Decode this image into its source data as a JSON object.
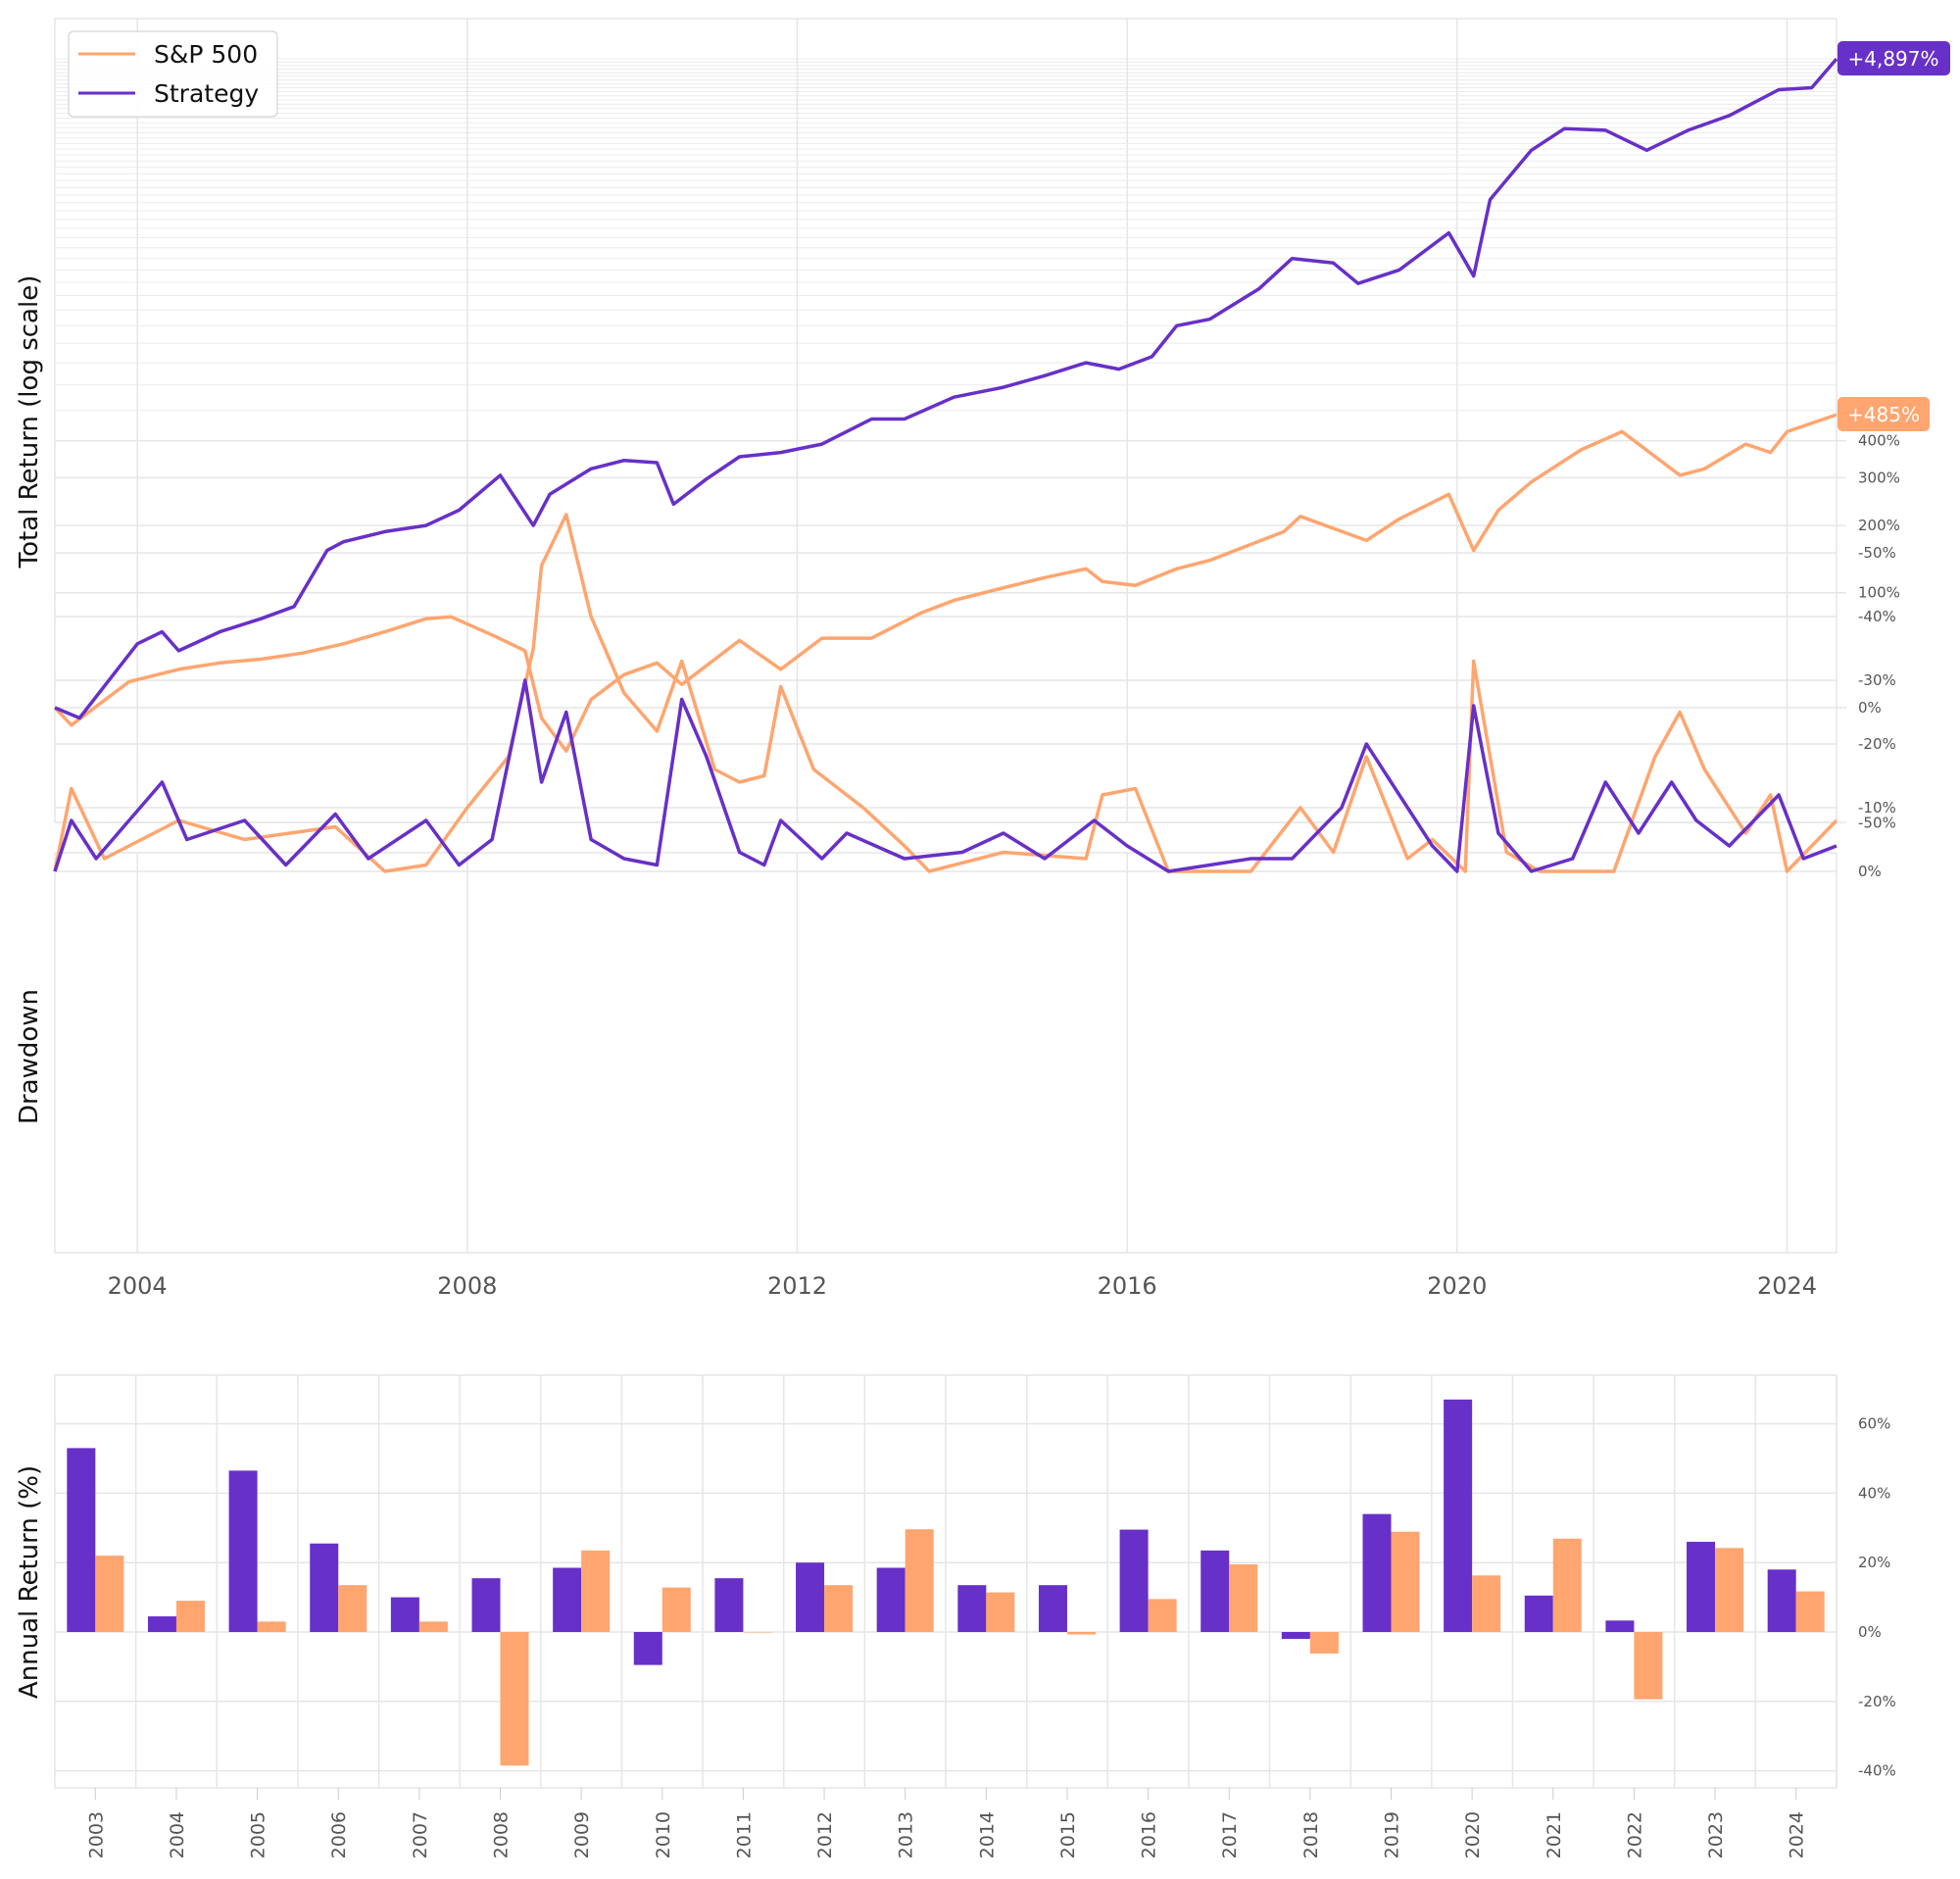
{
  "colors": {
    "strategy": "#6730c8",
    "sp500": "#ffa56f",
    "grid": "#e6e6e6"
  },
  "chart_data": [
    {
      "type": "line",
      "ylabel": "Total Return (log scale)",
      "yscale": "log(1+r)",
      "ylim": [
        -50,
        5000
      ],
      "yticks": [
        "-50%",
        "0%",
        "100%",
        "200%",
        "300%",
        "400%"
      ],
      "ytick_values": [
        -50,
        0,
        100,
        200,
        300,
        400
      ],
      "xlim": [
        2003.0,
        2024.6
      ],
      "legend": {
        "position": "top-left",
        "entries": [
          "S&P 500",
          "Strategy"
        ]
      },
      "end_labels": {
        "strategy": "+4,897%",
        "sp500": "+485%"
      },
      "series": [
        {
          "name": "Strategy",
          "x": [
            2003.0,
            2003.3,
            2004.0,
            2004.3,
            2004.5,
            2005.0,
            2005.5,
            2005.9,
            2006.3,
            2006.5,
            2007.0,
            2007.5,
            2007.9,
            2008.4,
            2008.8,
            2009.0,
            2009.5,
            2009.9,
            2010.3,
            2010.5,
            2010.9,
            2011.3,
            2011.8,
            2012.3,
            2012.9,
            2013.3,
            2013.9,
            2014.5,
            2015.0,
            2015.5,
            2015.9,
            2016.3,
            2016.6,
            2017.0,
            2017.6,
            2018.0,
            2018.5,
            2018.8,
            2019.3,
            2019.9,
            2020.2,
            2020.4,
            2020.9,
            2021.3,
            2021.8,
            2022.3,
            2022.8,
            2023.3,
            2023.9,
            2024.3,
            2024.6
          ],
          "y": [
            0,
            -6,
            47,
            58,
            41,
            58,
            71,
            84,
            158,
            172,
            189,
            200,
            229,
            306,
            200,
            262,
            322,
            344,
            338,
            241,
            297,
            354,
            366,
            390,
            470,
            470,
            550,
            590,
            640,
            700,
            670,
            730,
            900,
            940,
            1150,
            1400,
            1360,
            1190,
            1300,
            1650,
            1250,
            2040,
            2780,
            3180,
            3150,
            2780,
            3150,
            3450,
            4050,
            4100,
            4897
          ]
        },
        {
          "name": "S&P 500",
          "x": [
            2003.0,
            2003.2,
            2003.9,
            2004.5,
            2005.0,
            2005.5,
            2006.0,
            2006.5,
            2007.0,
            2007.5,
            2007.8,
            2008.3,
            2008.7,
            2008.9,
            2009.2,
            2009.5,
            2009.9,
            2010.3,
            2010.6,
            2011.3,
            2011.8,
            2012.3,
            2012.9,
            2013.5,
            2013.9,
            2014.5,
            2015.0,
            2015.5,
            2015.7,
            2016.1,
            2016.6,
            2017.0,
            2017.9,
            2018.1,
            2018.9,
            2019.3,
            2019.9,
            2020.2,
            2020.5,
            2020.9,
            2021.5,
            2022.0,
            2022.7,
            2023.0,
            2023.5,
            2023.8,
            2024.0,
            2024.6
          ],
          "y": [
            0,
            -10,
            17,
            26,
            31,
            34,
            39,
            47,
            58,
            71,
            73,
            55,
            41,
            -6,
            -23,
            5,
            22,
            31,
            15,
            50,
            26,
            52,
            52,
            77,
            91,
            106,
            119,
            131,
            114,
            109,
            131,
            143,
            189,
            217,
            174,
            212,
            262,
            158,
            229,
            290,
            373,
            428,
            306,
            322,
            390,
            366,
            428,
            485
          ]
        }
      ]
    },
    {
      "type": "line",
      "ylabel": "Drawdown",
      "ylim": [
        -60,
        0
      ],
      "yticks": [
        "0%",
        "-10%",
        "-20%",
        "-30%",
        "-40%",
        "-50%"
      ],
      "ytick_values": [
        0,
        -10,
        -20,
        -30,
        -40,
        -50
      ],
      "xticks": [
        "2004",
        "2008",
        "2012",
        "2016",
        "2020",
        "2024"
      ],
      "xtick_values": [
        2004,
        2008,
        2012,
        2016,
        2020,
        2024
      ],
      "series": [
        {
          "name": "Strategy",
          "x": [
            2003.0,
            2003.2,
            2003.5,
            2004.3,
            2004.6,
            2005.3,
            2005.8,
            2006.4,
            2006.8,
            2007.5,
            2007.9,
            2008.3,
            2008.7,
            2008.9,
            2009.2,
            2009.5,
            2009.9,
            2010.3,
            2010.6,
            2010.9,
            2011.3,
            2011.6,
            2011.8,
            2012.3,
            2012.6,
            2013.3,
            2014.0,
            2014.5,
            2015.0,
            2015.6,
            2016.0,
            2016.5,
            2017.5,
            2018.0,
            2018.6,
            2018.9,
            2019.3,
            2019.7,
            2020.0,
            2020.2,
            2020.5,
            2020.9,
            2021.4,
            2021.8,
            2022.2,
            2022.6,
            2022.9,
            2023.3,
            2023.9,
            2024.2,
            2024.6
          ],
          "y": [
            0,
            -8,
            -2,
            -14,
            -5,
            -8,
            -1,
            -9,
            -2,
            -8,
            -1,
            -5,
            -30,
            -14,
            -25,
            -5,
            -2,
            -1,
            -27,
            -18,
            -3,
            -1,
            -8,
            -2,
            -6,
            -2,
            -3,
            -6,
            -2,
            -8,
            -4,
            0,
            -2,
            -2,
            -10,
            -20,
            -12,
            -4,
            0,
            -26,
            -6,
            0,
            -2,
            -14,
            -6,
            -14,
            -8,
            -4,
            -12,
            -2,
            -4
          ]
        },
        {
          "name": "S&P 500",
          "x": [
            2003.0,
            2003.2,
            2003.6,
            2004.5,
            2005.3,
            2006.4,
            2007.0,
            2007.5,
            2008.0,
            2008.5,
            2008.8,
            2008.9,
            2009.2,
            2009.5,
            2009.9,
            2010.3,
            2010.6,
            2011.0,
            2011.3,
            2011.6,
            2011.8,
            2012.2,
            2012.8,
            2013.3,
            2013.6,
            2014.5,
            2015.5,
            2015.7,
            2016.1,
            2016.5,
            2017.5,
            2018.1,
            2018.5,
            2018.9,
            2019.4,
            2019.7,
            2020.1,
            2020.2,
            2020.6,
            2021.0,
            2021.9,
            2022.4,
            2022.7,
            2023.0,
            2023.5,
            2023.8,
            2024.0,
            2024.6
          ],
          "y": [
            0,
            -13,
            -2,
            -8,
            -5,
            -7,
            0,
            -1,
            -10,
            -18,
            -35,
            -48,
            -56,
            -40,
            -28,
            -22,
            -33,
            -16,
            -14,
            -15,
            -29,
            -16,
            -10,
            -4,
            0,
            -3,
            -2,
            -12,
            -13,
            0,
            0,
            -10,
            -3,
            -18,
            -2,
            -5,
            0,
            -33,
            -3,
            0,
            0,
            -18,
            -25,
            -16,
            -6,
            -12,
            0,
            -8
          ]
        }
      ]
    },
    {
      "type": "bar",
      "ylabel": "Annual Return (%)",
      "ylim": [
        -40,
        70
      ],
      "yticks": [
        "60%",
        "40%",
        "20%",
        "0%",
        "-20%",
        "-40%"
      ],
      "ytick_values": [
        60,
        40,
        20,
        0,
        -20,
        -40
      ],
      "categories": [
        "2003",
        "2004",
        "2005",
        "2006",
        "2007",
        "2008",
        "2009",
        "2010",
        "2011",
        "2012",
        "2013",
        "2014",
        "2015",
        "2016",
        "2017",
        "2018",
        "2019",
        "2020",
        "2021",
        "2022",
        "2023",
        "2024"
      ],
      "series": [
        {
          "name": "Strategy",
          "values": [
            53,
            4.5,
            46.5,
            25.5,
            10,
            15.5,
            18.5,
            -9.5,
            15.5,
            20,
            18.5,
            13.5,
            13.5,
            29.5,
            23.5,
            -2,
            34,
            67,
            10.5,
            3.3,
            26,
            18
          ]
        },
        {
          "name": "S&P 500",
          "values": [
            22,
            9,
            3,
            13.5,
            3,
            -38.5,
            23.5,
            12.8,
            0,
            13.5,
            29.6,
            11.4,
            -0.7,
            9.5,
            19.5,
            -6.2,
            28.9,
            16.3,
            26.9,
            -19.4,
            24.2,
            11.7
          ]
        }
      ]
    }
  ]
}
